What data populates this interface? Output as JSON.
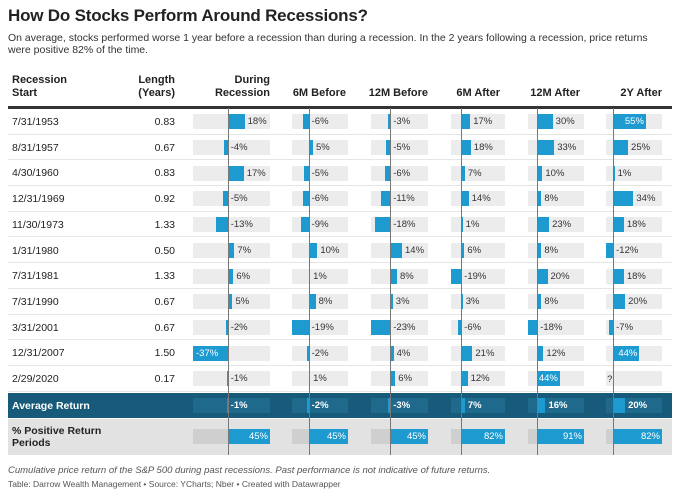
{
  "title": "How Do Stocks Perform Around Recessions?",
  "subtitle": "On average, stocks performed worse 1 year before a recession than during a recession. In the 2 years following a recession, price returns were positive 82% of the time.",
  "headers": [
    "Recession Start",
    "Length (Years)",
    "During Recession",
    "6M Before",
    "12M Before",
    "6M After",
    "12M After",
    "2Y After"
  ],
  "colors": {
    "bar": "#1d9bd1",
    "bar_bg": "#ececec",
    "avg_row_bg": "#175a7a",
    "pct_row_bg": "#e2e2e2"
  },
  "chart_data": {
    "type": "table",
    "columns": [
      "During Recession",
      "6M Before",
      "12M Before",
      "6M After",
      "12M After",
      "2Y After"
    ],
    "rows": [
      {
        "start": "7/31/1953",
        "length": "0.83",
        "values": [
          18,
          -6,
          -3,
          17,
          30,
          55
        ]
      },
      {
        "start": "8/31/1957",
        "length": "0.67",
        "values": [
          -4,
          5,
          -5,
          18,
          33,
          25
        ]
      },
      {
        "start": "4/30/1960",
        "length": "0.83",
        "values": [
          17,
          -5,
          -6,
          7,
          10,
          1
        ]
      },
      {
        "start": "12/31/1969",
        "length": "0.92",
        "values": [
          -5,
          -6,
          -11,
          14,
          8,
          34
        ]
      },
      {
        "start": "11/30/1973",
        "length": "1.33",
        "values": [
          -13,
          -9,
          -18,
          1,
          23,
          18
        ]
      },
      {
        "start": "1/31/1980",
        "length": "0.50",
        "values": [
          7,
          10,
          14,
          6,
          8,
          -12
        ]
      },
      {
        "start": "7/31/1981",
        "length": "1.33",
        "values": [
          6,
          1,
          8,
          -19,
          20,
          18
        ]
      },
      {
        "start": "7/31/1990",
        "length": "0.67",
        "values": [
          5,
          8,
          3,
          3,
          8,
          20
        ]
      },
      {
        "start": "3/31/2001",
        "length": "0.67",
        "values": [
          -2,
          -19,
          -23,
          -6,
          -18,
          -7
        ]
      },
      {
        "start": "12/31/2007",
        "length": "1.50",
        "values": [
          -37,
          -2,
          4,
          21,
          12,
          44
        ]
      },
      {
        "start": "2/29/2020",
        "length": "0.17",
        "values": [
          -1,
          1,
          6,
          12,
          44,
          null
        ],
        "missing_label": "?"
      }
    ],
    "average": {
      "label": "Average Return",
      "values": [
        -1,
        -2,
        -3,
        7,
        16,
        20
      ]
    },
    "positive": {
      "label": "% Positive Return Periods",
      "values": [
        45,
        45,
        45,
        82,
        91,
        82
      ]
    }
  },
  "footer": {
    "note": "Cumulative price return of the S&P 500 during past recessions. Past performance is not indicative of future returns.",
    "credit": "Table: Darrow Wealth Management • Source: YCharts; Nber • Created with Datawrapper"
  }
}
